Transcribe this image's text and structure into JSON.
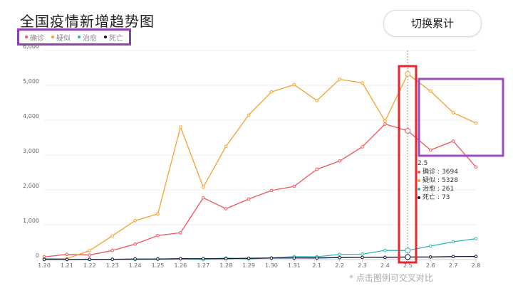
{
  "header": {
    "title": "全国疫情新增趋势图",
    "toggle_label": "切换累计",
    "note": "* 点击图例可交叉对比"
  },
  "colors": {
    "confirmed": "#f0565b",
    "suspected": "#f5a12f",
    "cured": "#2fb5b7",
    "death": "#111133",
    "grid": "#ececec",
    "annotation_red": "#e8252a",
    "annotation_purple": "#9b4cc1"
  },
  "tooltip": {
    "date": "2.5",
    "rows": [
      {
        "label": "确诊",
        "value": "3694",
        "color": "#f0565b"
      },
      {
        "label": "疑似",
        "value": "5328",
        "color": "#f5a12f"
      },
      {
        "label": "治愈",
        "value": "261",
        "color": "#2fb5b7"
      },
      {
        "label": "死亡",
        "value": "73",
        "color": "#111133"
      }
    ]
  },
  "chart_data": {
    "type": "line",
    "title": "全国疫情新增趋势图",
    "x": [
      "1.20",
      "1.21",
      "1.22",
      "1.23",
      "1.24",
      "1.25",
      "1.26",
      "1.27",
      "1.28",
      "1.29",
      "1.30",
      "1.31",
      "2.1",
      "2.2",
      "2.3",
      "2.4",
      "2.5",
      "2.6",
      "2.7",
      "2.8"
    ],
    "ylim": [
      0,
      6000
    ],
    "yticks": [
      "0",
      "1,000",
      "2,000",
      "3,000",
      "4,000",
      "5,000",
      "6,000"
    ],
    "grid": true,
    "legend": "top-left",
    "series": [
      {
        "name": "确诊",
        "color": "#f0565b",
        "values": [
          77,
          149,
          131,
          259,
          444,
          688,
          769,
          1771,
          1459,
          1737,
          1982,
          2102,
          2590,
          2829,
          3235,
          3887,
          3694,
          3143,
          3399,
          2656
        ]
      },
      {
        "name": "疑似",
        "color": "#f5a12f",
        "values": [
          27,
          26,
          257,
          680,
          1118,
          1309,
          3806,
          2077,
          3248,
          4148,
          4812,
          5019,
          4562,
          5173,
          5072,
          3971,
          5328,
          4833,
          4214,
          3916
        ]
      },
      {
        "name": "治愈",
        "color": "#2fb5b7",
        "values": [
          4,
          0,
          3,
          7,
          3,
          11,
          25,
          9,
          43,
          21,
          47,
          85,
          81,
          148,
          156,
          262,
          261,
          387,
          510,
          600
        ]
      },
      {
        "name": "死亡",
        "color": "#111133",
        "values": [
          3,
          3,
          8,
          8,
          16,
          15,
          24,
          26,
          26,
          38,
          43,
          46,
          45,
          57,
          64,
          65,
          73,
          73,
          86,
          89
        ]
      }
    ],
    "highlight_index": 16
  }
}
